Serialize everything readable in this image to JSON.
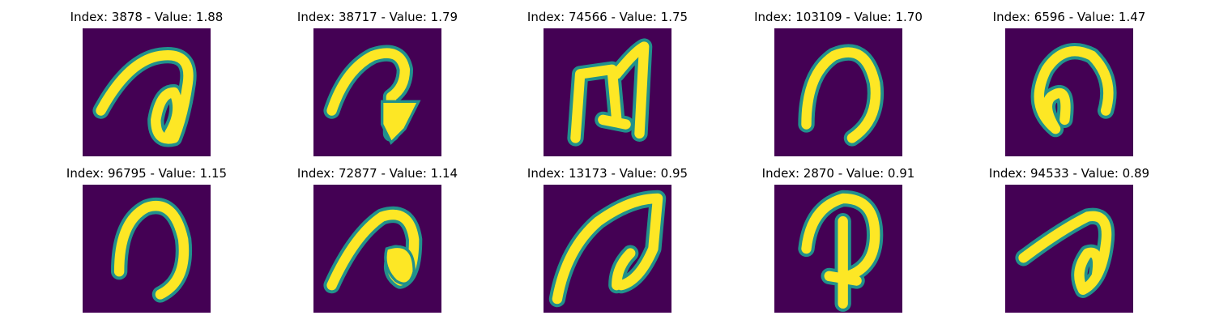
{
  "colors": {
    "background": "#440154",
    "stroke_edge": "#21918c",
    "stroke_core": "#fde725"
  },
  "panels": [
    {
      "title": "Index: 3878 - Value: 1.88",
      "glyph": "loop-a"
    },
    {
      "title": "Index: 38717 - Value: 1.79",
      "glyph": "hook-blob"
    },
    {
      "title": "Index: 74566 - Value: 1.75",
      "glyph": "double-bar"
    },
    {
      "title": "Index: 103109 - Value: 1.70",
      "glyph": "arch"
    },
    {
      "title": "Index: 6596 - Value: 1.47",
      "glyph": "arch-loop"
    },
    {
      "title": "Index: 96795 - Value: 1.15",
      "glyph": "arch-wide"
    },
    {
      "title": "Index: 72877 - Value: 1.14",
      "glyph": "arch-blob"
    },
    {
      "title": "Index: 13173 - Value: 0.95",
      "glyph": "sweep"
    },
    {
      "title": "Index: 2870 - Value: 0.91",
      "glyph": "p-stem"
    },
    {
      "title": "Index: 94533 - Value: 0.89",
      "glyph": "loop-small"
    }
  ]
}
